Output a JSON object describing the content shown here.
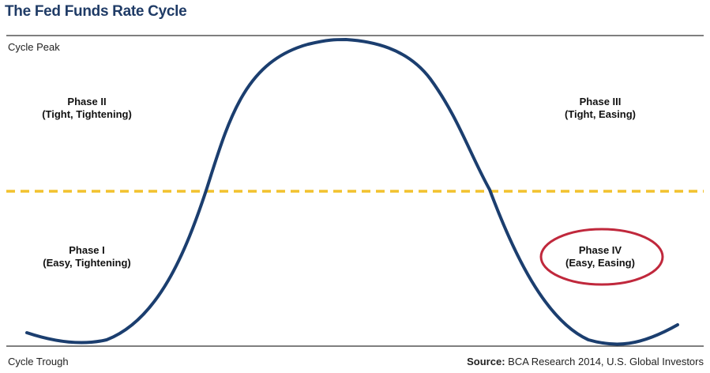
{
  "title": "The Fed Funds Rate Cycle",
  "labels": {
    "peak": "Cycle Peak",
    "trough": "Cycle Trough"
  },
  "phases": {
    "phase_1": {
      "name": "Phase I",
      "desc": "(Easy, Tightening)"
    },
    "phase_2": {
      "name": "Phase II",
      "desc": "(Tight, Tightening)"
    },
    "phase_3": {
      "name": "Phase III",
      "desc": "(Tight, Easing)"
    },
    "phase_4": {
      "name": "Phase IV",
      "desc": "(Easy, Easing)"
    }
  },
  "source": {
    "prefix": "Source:",
    "text": " BCA Research 2014, U.S. Global Investors"
  },
  "colors": {
    "title": "#1f3b66",
    "curve": "#1b3e6f",
    "neutral_line": "#f2c22e",
    "highlight_circle": "#c0283c",
    "axis_lines": "#333333"
  }
}
